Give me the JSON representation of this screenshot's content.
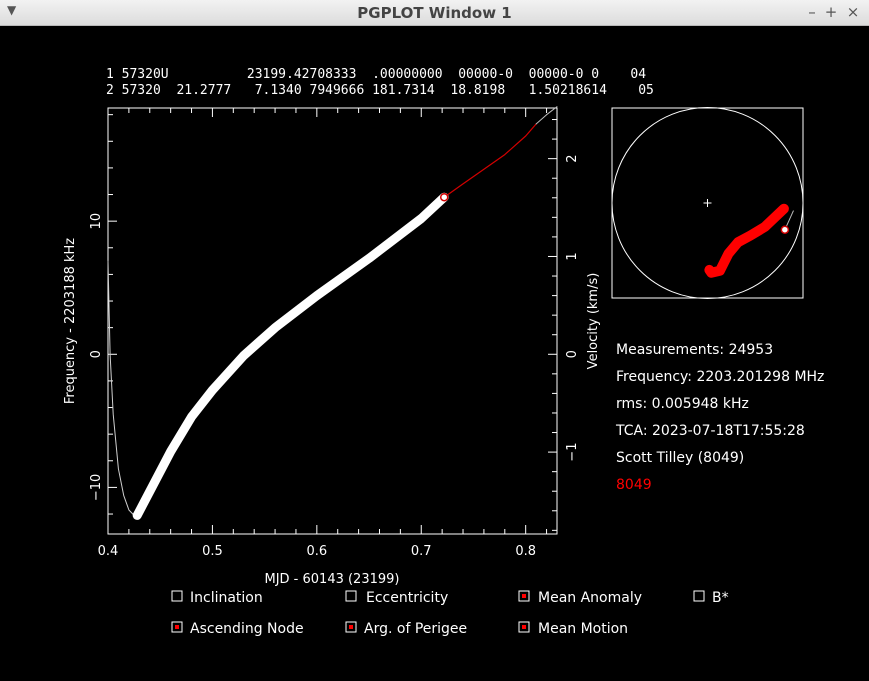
{
  "window": {
    "title": "PGPLOT Window 1"
  },
  "tle": {
    "line1": "1 57320U          23199.42708333  .00000000  00000-0  00000-0 0    04",
    "line2": "2 57320  21.2777   7.1340 7949666 181.7314  18.8198   1.50218614    05"
  },
  "info": {
    "measurements": "Measurements: 24953",
    "frequency": "Frequency: 2203.201298 MHz",
    "rms": "rms: 0.005948 kHz",
    "tca": "TCA: 2023-07-18T17:55:28",
    "observer": "Scott Tilley (8049)",
    "site": "8049"
  },
  "checkboxes": [
    {
      "label": "Inclination",
      "checked": false
    },
    {
      "label": "Eccentricity",
      "checked": false
    },
    {
      "label": "Mean Anomaly",
      "checked": true
    },
    {
      "label": "B*",
      "checked": false
    },
    {
      "label": "Ascending Node",
      "checked": true
    },
    {
      "label": "Arg. of Perigee",
      "checked": true
    },
    {
      "label": "Mean Motion",
      "checked": true
    }
  ],
  "colors": {
    "background": "#000000",
    "foreground": "#ffffff",
    "model": "#d40000",
    "accent": "#ff0000"
  },
  "chart_data": {
    "type": "line",
    "xlabel": "MJD - 60143 (23199)",
    "ylabel": "Frequency - 2203188 kHz",
    "y2label": "Velocity (km/s)",
    "xlim": [
      0.4,
      0.83
    ],
    "ylim": [
      -13.5,
      18.5
    ],
    "y2_per_y": 0.1361,
    "xticks": [
      "0.4",
      "0.5",
      "0.6",
      "0.7",
      "0.8"
    ],
    "yticks": [
      "−10",
      "0",
      "10"
    ],
    "y2ticks": [
      "−1",
      "0",
      "1",
      "2"
    ],
    "series": [
      {
        "kind": "model-curve",
        "color": "#ffffff",
        "x": [
          0.4,
          0.402,
          0.405,
          0.41,
          0.415,
          0.42,
          0.425,
          0.428
        ],
        "y": [
          7.0,
          0.0,
          -4.5,
          -8.6,
          -10.6,
          -11.7,
          -12.1,
          -12.2
        ]
      },
      {
        "kind": "measurements",
        "color": "#ffffff",
        "x": [
          0.428,
          0.44,
          0.46,
          0.48,
          0.5,
          0.53,
          0.56,
          0.6,
          0.65,
          0.7,
          0.722
        ],
        "y": [
          -12.1,
          -10.3,
          -7.3,
          -4.7,
          -2.7,
          -0.1,
          2.0,
          4.4,
          7.2,
          10.2,
          11.8
        ]
      },
      {
        "kind": "model-extension",
        "color": "#d40000",
        "x": [
          0.722,
          0.74,
          0.76,
          0.78,
          0.8,
          0.81
        ],
        "y": [
          11.8,
          12.8,
          13.9,
          15.0,
          16.4,
          17.3
        ]
      },
      {
        "kind": "model-extension-end",
        "color": "#ffffff",
        "x": [
          0.81,
          0.82,
          0.83
        ],
        "y": [
          17.3,
          18.0,
          18.6
        ]
      }
    ],
    "marker": {
      "x": 0.722,
      "y": 11.8
    },
    "groundtrack": {
      "center": [
        0,
        0
      ],
      "track": [
        [
          0.02,
          -0.7
        ],
        [
          0.04,
          -0.73
        ],
        [
          0.13,
          -0.71
        ],
        [
          0.17,
          -0.63
        ],
        [
          0.22,
          -0.53
        ],
        [
          0.32,
          -0.41
        ],
        [
          0.45,
          -0.34
        ],
        [
          0.6,
          -0.25
        ],
        [
          0.8,
          -0.06
        ]
      ],
      "marker": [
        0.81,
        -0.28
      ],
      "line_end": [
        [
          0.81,
          -0.28
        ],
        [
          0.9,
          -0.08
        ]
      ]
    }
  }
}
